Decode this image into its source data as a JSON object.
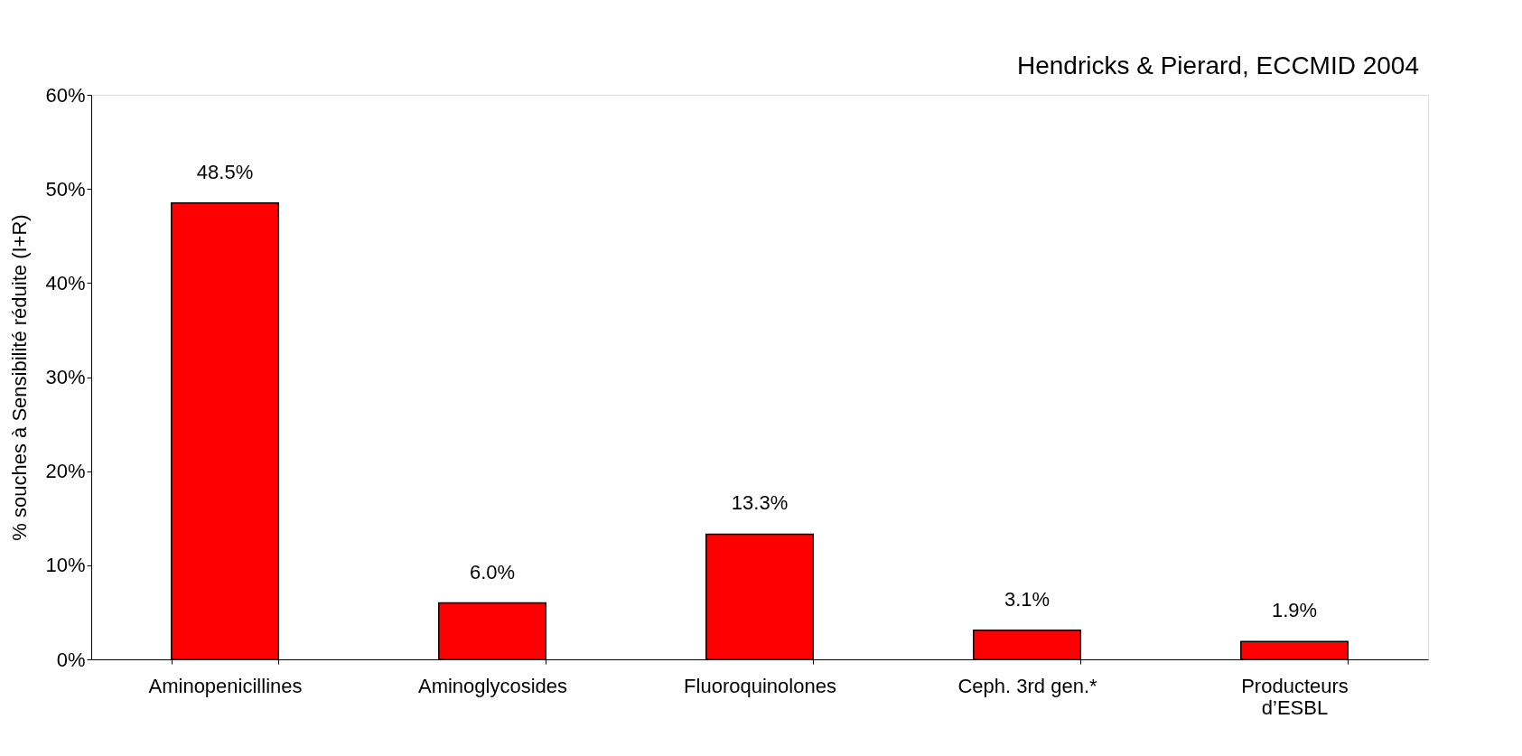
{
  "chart_data": {
    "type": "bar",
    "categories": [
      "Aminopenicillines",
      "Aminoglycosides",
      "Fluoroquinolones",
      "Ceph. 3rd gen.*",
      "Producteurs\nd’ESBL"
    ],
    "values": [
      48.5,
      6.0,
      13.3,
      3.1,
      1.9
    ],
    "color": "#ff0000",
    "value_labels": [
      "48.5%",
      "6.0%",
      "13.3%",
      "3.1%",
      "1.9%"
    ],
    "ylabel": "% souches à Sensibilité réduite (I+R)",
    "ylim": [
      0,
      60
    ],
    "yticks": [
      {
        "value": 0,
        "label": "0%"
      },
      {
        "value": 10,
        "label": "10%"
      },
      {
        "value": 20,
        "label": "20%"
      },
      {
        "value": 30,
        "label": "30%"
      },
      {
        "value": 40,
        "label": "40%"
      },
      {
        "value": 50,
        "label": "50%"
      },
      {
        "value": 60,
        "label": "60%"
      }
    ],
    "annotations": [
      "Hendricks & Pierard, ECCMID 2004"
    ],
    "grid": false
  }
}
